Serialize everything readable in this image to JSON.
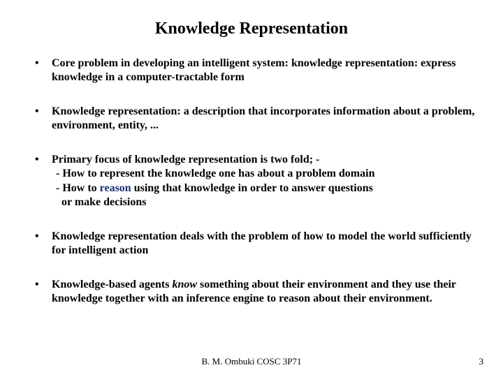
{
  "title": "Knowledge Representation",
  "bullets": {
    "b1": "Core problem in developing an intelligent system: knowledge representation: express knowledge in a computer-tractable form",
    "b2": "Knowledge representation: a description that incorporates information about a problem, environment, entity, ...",
    "b3_line1": "Primary focus of knowledge representation is two fold; -",
    "b3_line2": "- How to represent the knowledge one has about a problem domain",
    "b3_line3a": "- How to ",
    "b3_line3_reason": "reason",
    "b3_line3b": " using that knowledge in order to answer questions",
    "b3_line4": "or make decisions",
    "b4": "Knowledge representation deals with the problem of how to model the world sufficiently for intelligent action",
    "b5a": "Knowledge-based agents ",
    "b5_know": "know",
    "b5b": " something about their environment and they use their knowledge together with an inference engine to reason about their environment."
  },
  "footer": "B. M. Ombuki   COSC 3P71",
  "page": "3",
  "colors": {
    "text": "#000000",
    "reason": "#1a2e7a",
    "background": "#ffffff"
  },
  "fontsize": {
    "title": 24,
    "body": 16,
    "footer": 13
  }
}
